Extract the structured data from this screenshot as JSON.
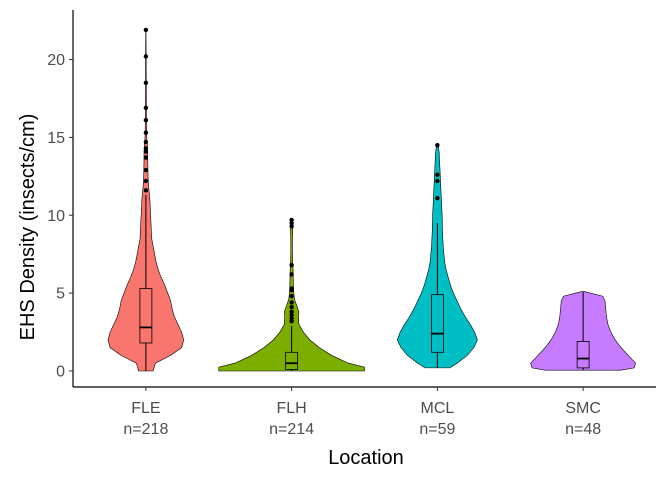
{
  "chart_data": {
    "type": "violin",
    "xlabel": "Location",
    "ylabel": "EHS Density (insects/cm)",
    "ylim": [
      -1.0,
      22.8
    ],
    "yticks": [
      0,
      5,
      10,
      15,
      20
    ],
    "grid": false,
    "legend": "none",
    "categories": [
      {
        "label": "FLE",
        "n_label": "n=218",
        "color": "#F8766D",
        "box": {
          "min": 0,
          "q1": 1.8,
          "median": 2.8,
          "q3": 5.3,
          "max": 11.3
        },
        "outliers": [
          11.6,
          12.2,
          12.9,
          13.7,
          14.1,
          14.3,
          14.7,
          15.3,
          16.1,
          16.9,
          18.5,
          20.2,
          21.9
        ],
        "density": [
          [
            0,
            0.1
          ],
          [
            0.5,
            0.13
          ],
          [
            1,
            0.34
          ],
          [
            1.5,
            0.49
          ],
          [
            2,
            0.52
          ],
          [
            2.5,
            0.49
          ],
          [
            3,
            0.44
          ],
          [
            3.5,
            0.39
          ],
          [
            4,
            0.36
          ],
          [
            4.5,
            0.34
          ],
          [
            5,
            0.3
          ],
          [
            5.5,
            0.26
          ],
          [
            6,
            0.21
          ],
          [
            6.5,
            0.17
          ],
          [
            7,
            0.14
          ],
          [
            7.5,
            0.12
          ],
          [
            8,
            0.1
          ],
          [
            8.5,
            0.08
          ],
          [
            9,
            0.075
          ],
          [
            9.5,
            0.07
          ],
          [
            10,
            0.065
          ],
          [
            10.5,
            0.06
          ],
          [
            11,
            0.055
          ],
          [
            11.5,
            0.045
          ],
          [
            12,
            0.035
          ],
          [
            12.5,
            0.03
          ],
          [
            13,
            0.028
          ],
          [
            13.5,
            0.026
          ],
          [
            14,
            0.025
          ],
          [
            14.5,
            0.02
          ],
          [
            15,
            0.012
          ],
          [
            16,
            0.008
          ],
          [
            17,
            0.007
          ],
          [
            18,
            0.006
          ],
          [
            19,
            0.005
          ],
          [
            20,
            0.004
          ],
          [
            21,
            0.003
          ],
          [
            22,
            0.002
          ]
        ]
      },
      {
        "label": "FLH",
        "n_label": "n=214",
        "color": "#7CAE00",
        "box": {
          "min": 0,
          "q1": 0.1,
          "median": 0.5,
          "q3": 1.2,
          "max": 2.9
        },
        "outliers": [
          3.2,
          3.4,
          3.6,
          3.8,
          4.1,
          4.4,
          4.8,
          5.2,
          5.3,
          6.2,
          6.8,
          9.3,
          9.5,
          9.7
        ],
        "density": [
          [
            0,
            1.0
          ],
          [
            0.25,
            1.0
          ],
          [
            0.5,
            0.78
          ],
          [
            1,
            0.55
          ],
          [
            1.5,
            0.38
          ],
          [
            2,
            0.25
          ],
          [
            2.5,
            0.16
          ],
          [
            3,
            0.1
          ],
          [
            3.5,
            0.095
          ],
          [
            3.8,
            0.1
          ],
          [
            4.2,
            0.07
          ],
          [
            4.6,
            0.04
          ],
          [
            5,
            0.03
          ],
          [
            5.5,
            0.025
          ],
          [
            6,
            0.022
          ],
          [
            6.5,
            0.02
          ],
          [
            7,
            0.015
          ],
          [
            7.5,
            0.012
          ],
          [
            8,
            0.011
          ],
          [
            8.5,
            0.012
          ],
          [
            9,
            0.015
          ],
          [
            9.3,
            0.018
          ],
          [
            9.6,
            0.012
          ]
        ]
      },
      {
        "label": "MCL",
        "n_label": "n=59",
        "color": "#00BFC4",
        "box": {
          "min": 0.2,
          "q1": 1.2,
          "median": 2.4,
          "q3": 4.9,
          "max": 9.5
        },
        "outliers": [
          11.1,
          12.2,
          12.6,
          14.5
        ],
        "density": [
          [
            0.2,
            0.17
          ],
          [
            0.5,
            0.27
          ],
          [
            1,
            0.41
          ],
          [
            1.5,
            0.5
          ],
          [
            2,
            0.55
          ],
          [
            2.5,
            0.51
          ],
          [
            3,
            0.45
          ],
          [
            3.5,
            0.38
          ],
          [
            4,
            0.32
          ],
          [
            4.5,
            0.27
          ],
          [
            5,
            0.22
          ],
          [
            5.5,
            0.18
          ],
          [
            6,
            0.15
          ],
          [
            6.5,
            0.12
          ],
          [
            7,
            0.1
          ],
          [
            7.5,
            0.09
          ],
          [
            8,
            0.08
          ],
          [
            9,
            0.07
          ],
          [
            10,
            0.065
          ],
          [
            10.5,
            0.06
          ],
          [
            11,
            0.055
          ],
          [
            11.5,
            0.05
          ],
          [
            12,
            0.045
          ],
          [
            12.5,
            0.04
          ],
          [
            13,
            0.035
          ],
          [
            13.5,
            0.03
          ],
          [
            14,
            0.025
          ],
          [
            14.5,
            0.012
          ]
        ]
      },
      {
        "label": "SMC",
        "n_label": "n=48",
        "color": "#C77CFF",
        "box": {
          "min": 0.05,
          "q1": 0.2,
          "median": 0.8,
          "q3": 1.9,
          "max": 5.1
        },
        "outliers": [],
        "density": [
          [
            0.05,
            0.52
          ],
          [
            0.2,
            0.7
          ],
          [
            0.5,
            0.72
          ],
          [
            1,
            0.62
          ],
          [
            1.5,
            0.52
          ],
          [
            2,
            0.44
          ],
          [
            2.5,
            0.38
          ],
          [
            3,
            0.34
          ],
          [
            3.5,
            0.32
          ],
          [
            4,
            0.31
          ],
          [
            4.5,
            0.3
          ],
          [
            4.8,
            0.27
          ],
          [
            5.1,
            0.02
          ]
        ]
      }
    ]
  }
}
